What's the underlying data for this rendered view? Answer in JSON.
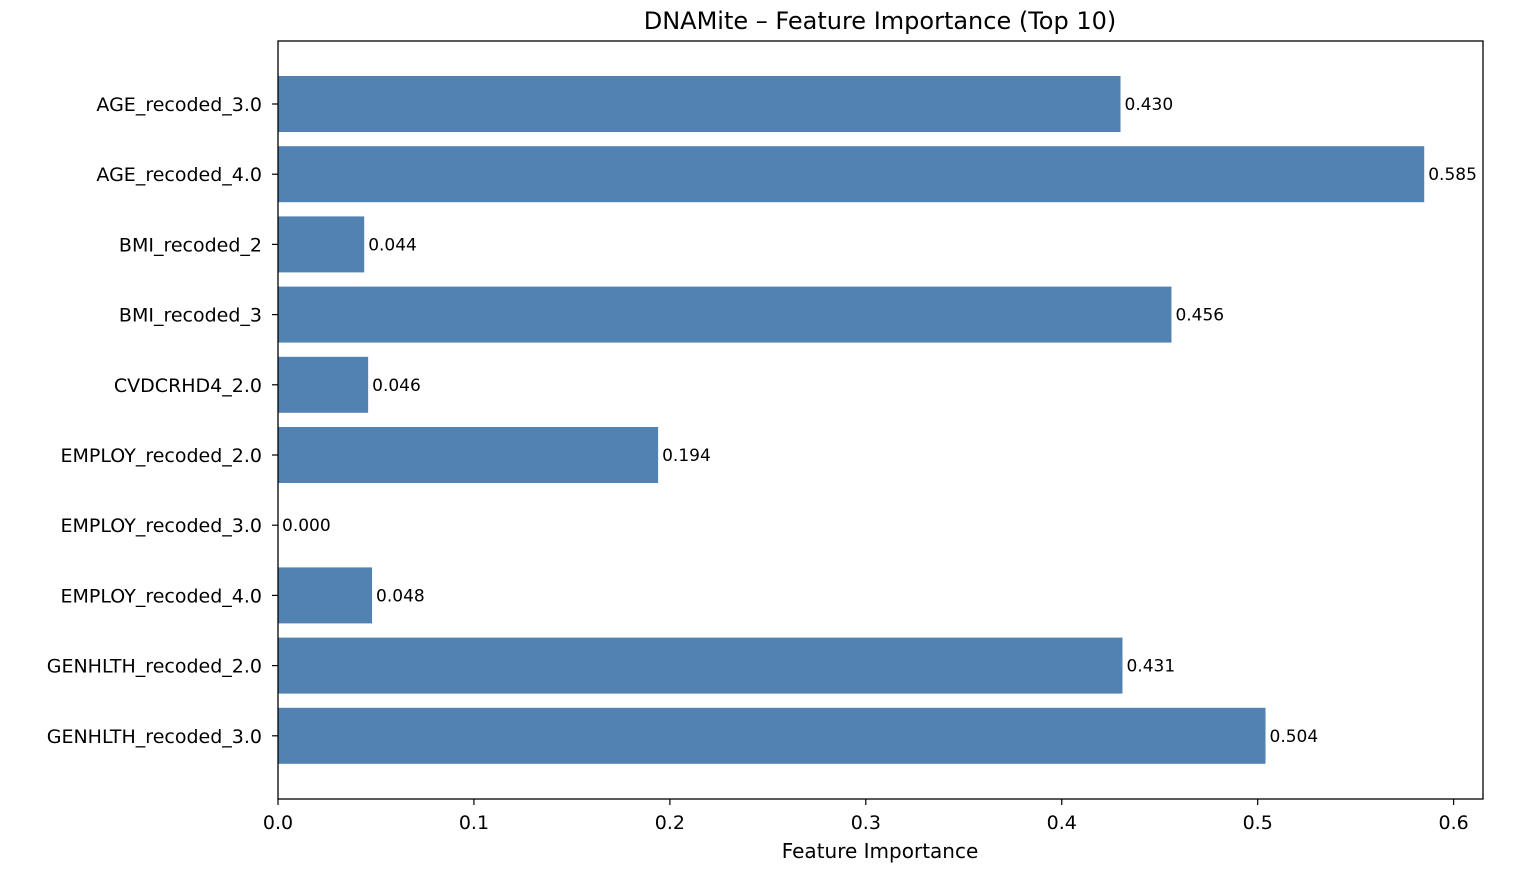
{
  "chart_data": {
    "type": "bar",
    "orientation": "horizontal",
    "title": "DNAMite – Feature Importance (Top 10)",
    "xlabel": "Feature Importance",
    "ylabel": "",
    "categories": [
      "AGE_recoded_3.0",
      "AGE_recoded_4.0",
      "BMI_recoded_2",
      "BMI_recoded_3",
      "CVDCRHD4_2.0",
      "EMPLOY_recoded_2.0",
      "EMPLOY_recoded_3.0",
      "EMPLOY_recoded_4.0",
      "GENHLTH_recoded_2.0",
      "GENHLTH_recoded_3.0"
    ],
    "values": [
      0.43,
      0.585,
      0.044,
      0.456,
      0.046,
      0.194,
      0.0,
      0.048,
      0.431,
      0.504
    ],
    "data_labels": [
      "0.430",
      "0.585",
      "0.044",
      "0.456",
      "0.046",
      "0.194",
      "0.000",
      "0.048",
      "0.431",
      "0.504"
    ],
    "xlim": [
      0,
      0.615
    ],
    "xticks": [
      0.0,
      0.1,
      0.2,
      0.3,
      0.4,
      0.5,
      0.6
    ],
    "xtick_labels": [
      "0.0",
      "0.1",
      "0.2",
      "0.3",
      "0.4",
      "0.5",
      "0.6"
    ],
    "grid": false,
    "legend": "none",
    "bar_color": "#5282b2"
  }
}
